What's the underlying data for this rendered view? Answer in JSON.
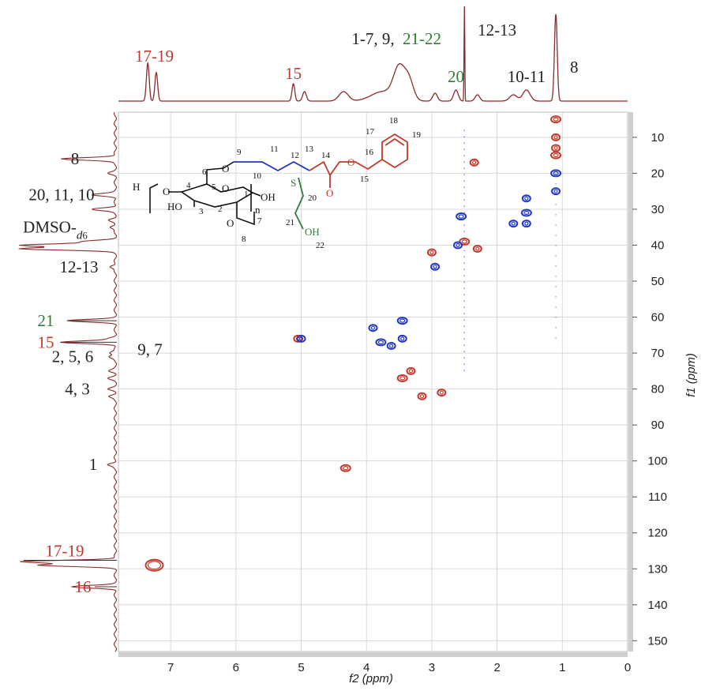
{
  "colors": {
    "black": "#222222",
    "red": "#c0392b",
    "green": "#2e7d32",
    "blue": "#1f36c8",
    "spectrum": "#8b2a2a",
    "grid": "#d8d8d8"
  },
  "chart_data": {
    "type": "scatter",
    "xlabel": "f2 (ppm)",
    "ylabel": "f1 (ppm)",
    "xlim": [
      7.8,
      0
    ],
    "ylim": [
      153,
      3
    ],
    "x_ticks": [
      "7",
      "6",
      "5",
      "4",
      "3",
      "2",
      "1",
      "0"
    ],
    "y_ticks": [
      "10",
      "20",
      "30",
      "40",
      "50",
      "60",
      "70",
      "80",
      "90",
      "100",
      "110",
      "120",
      "130",
      "140",
      "150"
    ],
    "grid": true,
    "series": [
      {
        "color": "red",
        "points": [
          {
            "x": 1.1,
            "y": 5
          },
          {
            "x": 1.1,
            "y": 10
          },
          {
            "x": 1.1,
            "y": 13
          },
          {
            "x": 1.1,
            "y": 15
          },
          {
            "x": 2.35,
            "y": 17
          },
          {
            "x": 2.3,
            "y": 41
          },
          {
            "x": 2.5,
            "y": 39
          },
          {
            "x": 3.0,
            "y": 42
          },
          {
            "x": 3.32,
            "y": 75
          },
          {
            "x": 3.45,
            "y": 77
          },
          {
            "x": 3.15,
            "y": 82
          },
          {
            "x": 2.85,
            "y": 81
          },
          {
            "x": 4.32,
            "y": 102
          },
          {
            "x": 5.05,
            "y": 66
          },
          {
            "x": 7.25,
            "y": 129
          }
        ]
      },
      {
        "color": "blue",
        "points": [
          {
            "x": 1.1,
            "y": 20
          },
          {
            "x": 1.1,
            "y": 25
          },
          {
            "x": 1.55,
            "y": 27
          },
          {
            "x": 1.55,
            "y": 31
          },
          {
            "x": 1.55,
            "y": 34
          },
          {
            "x": 1.75,
            "y": 34
          },
          {
            "x": 2.55,
            "y": 32
          },
          {
            "x": 2.6,
            "y": 40
          },
          {
            "x": 2.95,
            "y": 46
          },
          {
            "x": 3.45,
            "y": 61
          },
          {
            "x": 3.45,
            "y": 66
          },
          {
            "x": 3.62,
            "y": 68
          },
          {
            "x": 3.78,
            "y": 67
          },
          {
            "x": 3.9,
            "y": 63
          },
          {
            "x": 5.0,
            "y": 66
          }
        ]
      }
    ],
    "top_labels": [
      {
        "text": "17-19",
        "color": "red",
        "ppm": 7.25
      },
      {
        "text": "15",
        "color": "red",
        "ppm": 5.12
      },
      {
        "text": "1-7, 9, ",
        "color": "black",
        "ppm": 3.9
      },
      {
        "text": "21-22",
        "color": "green",
        "ppm": 3.15
      },
      {
        "text": "20",
        "color": "green",
        "ppm": 2.63
      },
      {
        "text": "12-13",
        "color": "black",
        "ppm": 2.0
      },
      {
        "text": "10-11",
        "color": "black",
        "ppm": 1.55
      },
      {
        "text": "8",
        "color": "black",
        "ppm": 0.82
      }
    ],
    "side_labels": [
      {
        "text": "8",
        "color": "black",
        "ppm": 16
      },
      {
        "text": "20, 11, 10",
        "color": "black",
        "ppm": 26
      },
      {
        "text": "DMSO-",
        "sub": "6",
        "color": "black",
        "ppm": 35
      },
      {
        "text": "12-13",
        "color": "black",
        "ppm": 46
      },
      {
        "text": "21",
        "color": "green",
        "ppm": 61
      },
      {
        "text": "15",
        "color": "red",
        "ppm": 67
      },
      {
        "text": "9, 7",
        "color": "black",
        "ppm": 69
      },
      {
        "text": "2, 5, 6",
        "color": "black",
        "ppm": 71
      },
      {
        "text": "4, 3",
        "color": "black",
        "ppm": 80
      },
      {
        "text": "1",
        "color": "black",
        "ppm": 101
      },
      {
        "text": "17-19",
        "color": "red",
        "ppm": 125
      },
      {
        "text": "16",
        "color": "red",
        "ppm": 135
      }
    ]
  },
  "structure": {
    "atoms": {
      "H": "H",
      "O_left": "O",
      "HO": "HO",
      "O_ring": "O",
      "OH_anomeric": "OH",
      "n": "n",
      "O_6": "O",
      "O_2": "O",
      "S": "S",
      "OH_22": "OH",
      "O_carbonyl": "O",
      "O_ester": "O"
    },
    "numbers": [
      "9",
      "11",
      "12",
      "13",
      "14",
      "16",
      "17",
      "18",
      "19",
      "6",
      "10",
      "4",
      "5",
      "1",
      "3",
      "2",
      "20",
      "21",
      "22",
      "7",
      "8",
      "15"
    ]
  }
}
